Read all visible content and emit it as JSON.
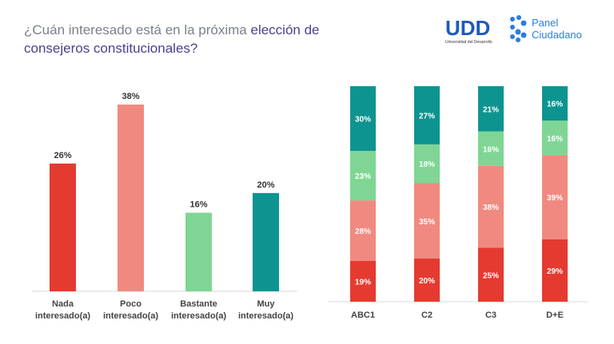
{
  "header": {
    "title_part1": "¿Cuán interesado está en la próxima ",
    "title_part2": "elección de",
    "title_part3": "consejeros constitucionales?",
    "logo_udd": "UDD",
    "logo_udd_sub": "Universidad del Desarrollo",
    "logo_panel_line1": "Panel",
    "logo_panel_line2": "Ciudadano"
  },
  "colors": {
    "nada": "#e53a2f",
    "poco": "#f08a80",
    "bastante": "#7fd694",
    "muy": "#0e9490"
  },
  "chart_data": [
    {
      "type": "bar",
      "categories": [
        "Nada interesado(a)",
        "Poco interesado(a)",
        "Bastante interesado(a)",
        "Muy interesado(a)"
      ],
      "category_lines": [
        [
          "Nada",
          "interesado(a)"
        ],
        [
          "Poco",
          "interesado(a)"
        ],
        [
          "Bastante",
          "interesado(a)"
        ],
        [
          "Muy",
          "interesado(a)"
        ]
      ],
      "values": [
        26,
        38,
        16,
        20
      ],
      "labels": [
        "26%",
        "38%",
        "16%",
        "20%"
      ],
      "colors": [
        "#e53a2f",
        "#f08a80",
        "#7fd694",
        "#0e9490"
      ],
      "ylim": [
        0,
        40
      ],
      "grid": false
    },
    {
      "type": "bar",
      "stacked": true,
      "categories": [
        "ABC1",
        "C2",
        "C3",
        "D+E"
      ],
      "series": [
        {
          "color": "#e53a2f",
          "values": [
            19,
            20,
            25,
            29
          ]
        },
        {
          "color": "#f08a80",
          "values": [
            28,
            35,
            38,
            39
          ]
        },
        {
          "color": "#7fd694",
          "values": [
            23,
            18,
            16,
            16
          ]
        },
        {
          "color": "#0e9490",
          "values": [
            30,
            27,
            21,
            16
          ]
        }
      ],
      "ylim": [
        0,
        100
      ],
      "grid": false
    }
  ]
}
